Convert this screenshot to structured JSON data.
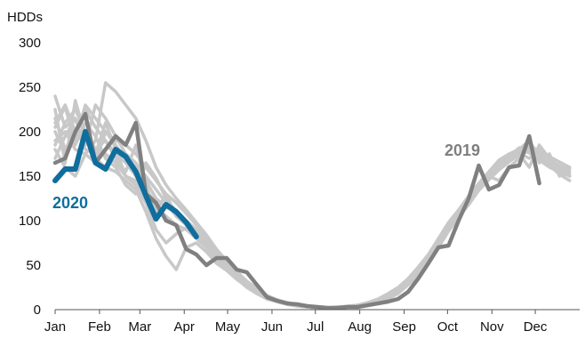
{
  "chart_data": {
    "type": "line",
    "title": "",
    "xlabel": "",
    "ylabel": "HDDs",
    "ylim": [
      0,
      300
    ],
    "yticks": [
      0,
      50,
      100,
      150,
      200,
      250,
      300
    ],
    "xlim": [
      1,
      53
    ],
    "month_ticks": [
      {
        "label": "Jan",
        "week": 1
      },
      {
        "label": "Feb",
        "week": 5.4
      },
      {
        "label": "Mar",
        "week": 9.4
      },
      {
        "label": "Apr",
        "week": 13.8
      },
      {
        "label": "May",
        "week": 18.1
      },
      {
        "label": "Jun",
        "week": 22.5
      },
      {
        "label": "Jul",
        "week": 26.8
      },
      {
        "label": "Aug",
        "week": 31.2
      },
      {
        "label": "Sep",
        "week": 35.6
      },
      {
        "label": "Oct",
        "week": 39.9
      },
      {
        "label": "Nov",
        "week": 44.3
      },
      {
        "label": "Dec",
        "week": 48.6
      }
    ],
    "grid": false,
    "annotations": [
      {
        "text": "2019",
        "color": "#7f7f7f"
      },
      {
        "text": "2020",
        "color": "#0f6e9e"
      }
    ],
    "series": [
      {
        "color": "#c8c8c8",
        "width": 3.5,
        "values": [
          205,
          228,
          185,
          210,
          195,
          170,
          160,
          140,
          130,
          165,
          148,
          125,
          110,
          95,
          88,
          75,
          60,
          48,
          38,
          28,
          20,
          14,
          10,
          7,
          5,
          3,
          2,
          2,
          2,
          3,
          4,
          5,
          7,
          12,
          18,
          28,
          40,
          55,
          72,
          90,
          105,
          118,
          135,
          150,
          145,
          160,
          170,
          188,
          175,
          165,
          160,
          150
        ]
      },
      {
        "color": "#c8c8c8",
        "width": 3.5,
        "values": [
          215,
          180,
          200,
          225,
          205,
          190,
          175,
          165,
          150,
          135,
          120,
          100,
          95,
          90,
          80,
          70,
          55,
          45,
          35,
          25,
          18,
          12,
          9,
          6,
          4,
          3,
          2,
          2,
          3,
          4,
          5,
          7,
          10,
          15,
          22,
          32,
          45,
          60,
          78,
          95,
          110,
          125,
          140,
          150,
          165,
          170,
          175,
          160,
          185,
          170,
          160,
          155
        ]
      },
      {
        "color": "#c8c8c8",
        "width": 3.5,
        "values": [
          185,
          210,
          225,
          200,
          180,
          190,
          170,
          155,
          185,
          140,
          110,
          130,
          105,
          95,
          85,
          80,
          62,
          50,
          40,
          30,
          22,
          15,
          10,
          7,
          5,
          4,
          3,
          2,
          2,
          3,
          5,
          8,
          12,
          18,
          25,
          35,
          48,
          62,
          80,
          98,
          112,
          128,
          142,
          155,
          168,
          175,
          180,
          190,
          165,
          175,
          150,
          160
        ]
      },
      {
        "color": "#c8c8c8",
        "width": 3.5,
        "values": [
          200,
          175,
          190,
          230,
          215,
          200,
          185,
          170,
          160,
          145,
          125,
          115,
          110,
          100,
          90,
          78,
          65,
          52,
          42,
          32,
          24,
          16,
          11,
          8,
          5,
          3,
          2,
          2,
          2,
          3,
          4,
          6,
          9,
          14,
          20,
          30,
          42,
          58,
          75,
          92,
          108,
          122,
          138,
          150,
          160,
          170,
          178,
          182,
          170,
          165,
          158,
          150
        ]
      },
      {
        "color": "#c8c8c8",
        "width": 3.5,
        "values": [
          170,
          195,
          215,
          180,
          175,
          210,
          180,
          150,
          140,
          120,
          90,
          75,
          85,
          92,
          80,
          72,
          58,
          46,
          36,
          27,
          19,
          13,
          9,
          6,
          4,
          3,
          2,
          2,
          3,
          3,
          5,
          7,
          11,
          16,
          23,
          33,
          46,
          60,
          76,
          94,
          110,
          124,
          140,
          152,
          164,
          172,
          182,
          176,
          168,
          160,
          155,
          150
        ]
      },
      {
        "color": "#c8c8c8",
        "width": 3.5,
        "values": [
          210,
          230,
          200,
          185,
          230,
          215,
          195,
          175,
          165,
          150,
          135,
          120,
          105,
          98,
          88,
          76,
          63,
          51,
          40,
          30,
          21,
          14,
          10,
          7,
          5,
          3,
          2,
          2,
          2,
          3,
          4,
          6,
          9,
          13,
          19,
          28,
          40,
          55,
          72,
          90,
          106,
          120,
          136,
          148,
          158,
          168,
          176,
          170,
          180,
          162,
          152,
          145
        ]
      },
      {
        "color": "#c8c8c8",
        "width": 3.5,
        "values": [
          225,
          165,
          235,
          195,
          180,
          175,
          165,
          150,
          145,
          130,
          115,
          105,
          95,
          90,
          85,
          70,
          58,
          47,
          37,
          28,
          20,
          14,
          10,
          7,
          5,
          3,
          2,
          2,
          2,
          3,
          4,
          6,
          9,
          14,
          20,
          29,
          41,
          56,
          73,
          91,
          107,
          121,
          137,
          149,
          160,
          169,
          177,
          180,
          172,
          165,
          160,
          155
        ]
      },
      {
        "color": "#c8c8c8",
        "width": 3.5,
        "values": [
          240,
          205,
          215,
          200,
          170,
          160,
          155,
          145,
          135,
          110,
          80,
          60,
          45,
          70,
          75,
          65,
          52,
          44,
          34,
          26,
          18,
          12,
          9,
          6,
          4,
          3,
          2,
          2,
          2,
          3,
          4,
          6,
          9,
          13,
          19,
          28,
          39,
          54,
          70,
          88,
          104,
          118,
          134,
          146,
          157,
          166,
          174,
          178,
          174,
          168,
          160,
          152
        ]
      },
      {
        "color": "#c8c8c8",
        "width": 3.5,
        "values": [
          190,
          200,
          180,
          175,
          165,
          200,
          190,
          185,
          175,
          160,
          145,
          130,
          120,
          108,
          95,
          82,
          66,
          53,
          42,
          31,
          22,
          15,
          10,
          7,
          5,
          3,
          2,
          2,
          2,
          3,
          4,
          6,
          10,
          15,
          21,
          30,
          43,
          58,
          74,
          92,
          108,
          122,
          138,
          150,
          162,
          172,
          180,
          185,
          176,
          168,
          162,
          158
        ]
      },
      {
        "color": "#c8c8c8",
        "width": 3.5,
        "values": [
          180,
          160,
          150,
          175,
          190,
          255,
          245,
          230,
          215,
          190,
          160,
          140,
          125,
          112,
          98,
          84,
          68,
          55,
          43,
          32,
          23,
          16,
          11,
          7,
          5,
          3,
          2,
          2,
          2,
          3,
          4,
          6,
          9,
          14,
          20,
          29,
          42,
          57,
          74,
          92,
          108,
          122,
          138,
          150,
          161,
          170,
          178,
          184,
          177,
          172,
          166,
          160
        ]
      },
      {
        "color": "#808080",
        "width": 4.5,
        "values": [
          165,
          170,
          200,
          220,
          165,
          180,
          195,
          185,
          210,
          130,
          120,
          100,
          95,
          68,
          62,
          50,
          58,
          58,
          45,
          42,
          28,
          14,
          10,
          7,
          6,
          4,
          3,
          2,
          2,
          3,
          3,
          5,
          7,
          9,
          12,
          20,
          35,
          52,
          70,
          72,
          100,
          125,
          162,
          135,
          140,
          160,
          162,
          195,
          142
        ]
      },
      {
        "color": "#0f6e9e",
        "width": 6,
        "values": [
          145,
          158,
          158,
          200,
          165,
          158,
          180,
          172,
          155,
          128,
          102,
          118,
          110,
          98,
          82
        ]
      }
    ]
  }
}
